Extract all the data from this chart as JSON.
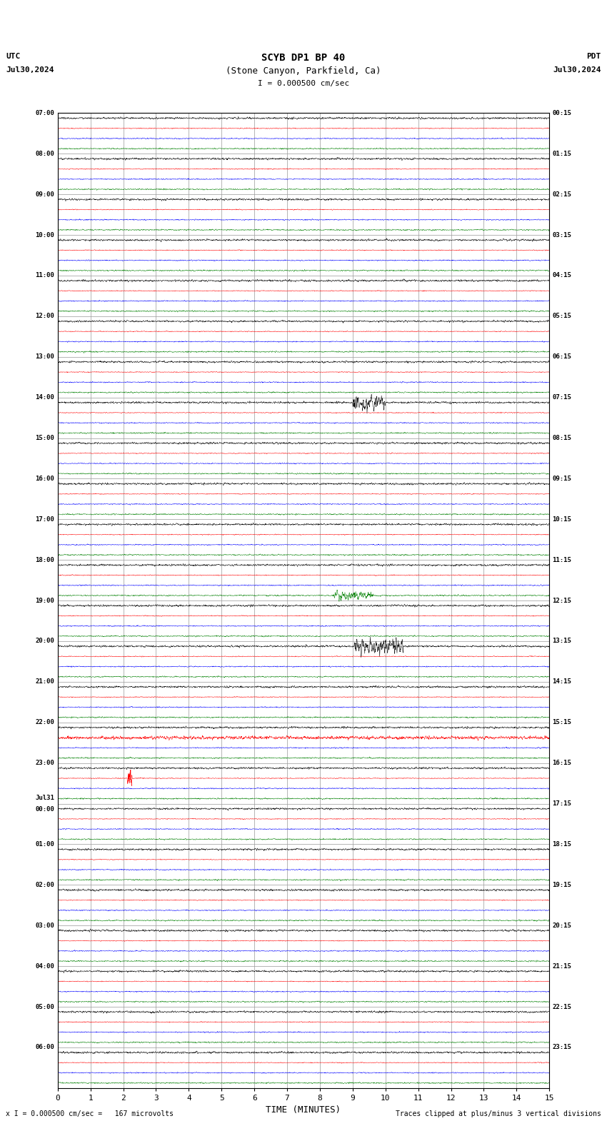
{
  "title_line1": "SCYB DP1 BP 40",
  "title_line2": "(Stone Canyon, Parkfield, Ca)",
  "scale_text": "I = 0.000500 cm/sec",
  "utc_label": "UTC",
  "pdt_label": "PDT",
  "date_left": "Jul30,2024",
  "date_right": "Jul30,2024",
  "footer_left": "x I = 0.000500 cm/sec =   167 microvolts",
  "footer_right": "Traces clipped at plus/minus 3 vertical divisions",
  "xlabel": "TIME (MINUTES)",
  "time_axis_min": 0,
  "time_axis_max": 15,
  "time_ticks": [
    0,
    1,
    2,
    3,
    4,
    5,
    6,
    7,
    8,
    9,
    10,
    11,
    12,
    13,
    14,
    15
  ],
  "background_color": "#ffffff",
  "grid_color": "#999999",
  "trace_colors": [
    "#000000",
    "#ff0000",
    "#0000ff",
    "#008000"
  ],
  "n_rows": 24,
  "row_labels_left": [
    "07:00",
    "08:00",
    "09:00",
    "10:00",
    "11:00",
    "12:00",
    "13:00",
    "14:00",
    "15:00",
    "16:00",
    "17:00",
    "18:00",
    "19:00",
    "20:00",
    "21:00",
    "22:00",
    "23:00",
    "Jul31\n00:00",
    "01:00",
    "02:00",
    "03:00",
    "04:00",
    "05:00",
    "06:00"
  ],
  "row_labels_right": [
    "00:15",
    "01:15",
    "02:15",
    "03:15",
    "04:15",
    "05:15",
    "06:15",
    "07:15",
    "08:15",
    "09:15",
    "10:15",
    "11:15",
    "12:15",
    "13:15",
    "14:15",
    "15:15",
    "16:15",
    "17:15",
    "18:15",
    "19:15",
    "20:15",
    "21:15",
    "22:15",
    "23:15"
  ],
  "traces_per_row": 4,
  "amp_black": 0.018,
  "amp_red": 0.008,
  "amp_blue": 0.01,
  "amp_green": 0.012
}
